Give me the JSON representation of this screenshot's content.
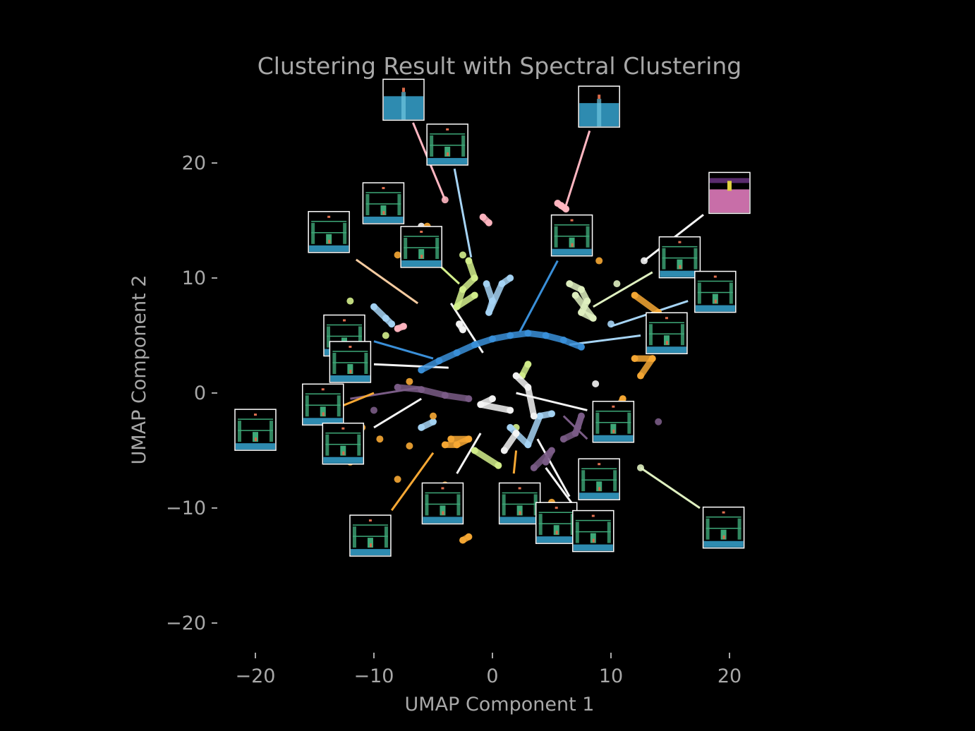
{
  "chart_data": {
    "type": "scatter",
    "title": "Clustering Result with Spectral Clustering",
    "xlabel": "UMAP Component 1",
    "ylabel": "UMAP Component 2",
    "xlim": [
      -21,
      21
    ],
    "ylim": [
      -22,
      25
    ],
    "xticks": [
      -20,
      -10,
      0,
      10,
      20
    ],
    "yticks": [
      -20,
      -10,
      0,
      10,
      20
    ],
    "xtick_labels": [
      "−20",
      "−10",
      "0",
      "10",
      "20"
    ],
    "ytick_labels": [
      "−20",
      "−10",
      "0",
      "10",
      "20"
    ],
    "grid": false,
    "background": "#000000",
    "series": [
      {
        "color": "#3a8fd8",
        "points": [
          [
            -6,
            2
          ],
          [
            -4.5,
            2.8
          ],
          [
            -3,
            3.5
          ],
          [
            -1.5,
            4.2
          ],
          [
            0,
            4.7
          ],
          [
            1.5,
            5
          ],
          [
            3,
            5.2
          ],
          [
            4.5,
            5
          ],
          [
            6,
            4.6
          ],
          [
            7.5,
            4
          ]
        ]
      },
      {
        "color": "#ffb6c1",
        "points": [
          [
            5.8,
            16.3
          ],
          [
            6.2,
            16
          ],
          [
            5.5,
            16.5
          ],
          [
            -4,
            16.8
          ],
          [
            -0.8,
            15.3
          ],
          [
            -0.3,
            14.8
          ],
          [
            -8,
            5.6
          ],
          [
            -7.5,
            5.8
          ]
        ]
      },
      {
        "color": "#d4f08c",
        "points": [
          [
            -2,
            11.5
          ],
          [
            -1.5,
            10
          ],
          [
            -2.5,
            9
          ],
          [
            -3,
            7.5
          ],
          [
            -1.5,
            8.5
          ],
          [
            -2.5,
            12
          ],
          [
            2,
            -3
          ],
          [
            -1.5,
            -5
          ],
          [
            0.5,
            -6.3
          ],
          [
            2.5,
            1.5
          ],
          [
            3,
            2.5
          ],
          [
            -9,
            5
          ],
          [
            -12,
            8
          ]
        ]
      },
      {
        "color": "#dff0c0",
        "points": [
          [
            6.5,
            9.5
          ],
          [
            7.5,
            9
          ],
          [
            8,
            8
          ],
          [
            7.5,
            7
          ],
          [
            8.5,
            6.5
          ],
          [
            7,
            8.5
          ],
          [
            12.5,
            -6.5
          ],
          [
            10.5,
            9.5
          ]
        ]
      },
      {
        "color": "#a6d4f5",
        "points": [
          [
            -0.5,
            9.5
          ],
          [
            0,
            8
          ],
          [
            -0.3,
            7
          ],
          [
            0.8,
            9.5
          ],
          [
            1.5,
            10
          ],
          [
            -10,
            7.5
          ],
          [
            -9,
            6.5
          ],
          [
            -8.5,
            6
          ],
          [
            1.5,
            -3
          ],
          [
            3,
            -4.5
          ],
          [
            4,
            -2
          ],
          [
            5,
            -1.8
          ],
          [
            -6,
            -3
          ],
          [
            -5,
            -2.5
          ],
          [
            10,
            6
          ]
        ]
      },
      {
        "color": "#f5f5f5",
        "points": [
          [
            0,
            -0.5
          ],
          [
            -1,
            -1
          ],
          [
            1.5,
            -1.5
          ],
          [
            2,
            1.5
          ],
          [
            3,
            0.5
          ],
          [
            3.5,
            -2
          ],
          [
            1,
            -5
          ],
          [
            2,
            -3.5
          ],
          [
            -2.5,
            5.5
          ],
          [
            -2.8,
            6
          ],
          [
            12.8,
            11.5
          ],
          [
            8.7,
            0.8
          ],
          [
            -6,
            14.5
          ]
        ]
      },
      {
        "color": "#7a5c86",
        "points": [
          [
            -8,
            0.5
          ],
          [
            -6,
            0.3
          ],
          [
            -4,
            -0.2
          ],
          [
            -2,
            -0.5
          ],
          [
            6,
            -4
          ],
          [
            7,
            -3.5
          ],
          [
            7.5,
            -2
          ],
          [
            7.2,
            -3
          ],
          [
            4.5,
            -6
          ],
          [
            5,
            -5
          ],
          [
            3.5,
            -6.5
          ],
          [
            -10,
            -1.5
          ],
          [
            14,
            -2.5
          ]
        ]
      },
      {
        "color": "#f7a834",
        "points": [
          [
            -4,
            -4.5
          ],
          [
            -3,
            -4.5
          ],
          [
            -2,
            -4
          ],
          [
            -3.5,
            -4
          ],
          [
            -7,
            -4.6
          ],
          [
            -8,
            -7.5
          ],
          [
            -9.5,
            -4
          ],
          [
            -12,
            -6
          ],
          [
            -11,
            -3
          ],
          [
            -7,
            1
          ],
          [
            -5,
            -2
          ],
          [
            -2,
            -12.5
          ],
          [
            -2.5,
            -12.8
          ],
          [
            -4,
            -8
          ],
          [
            9,
            -1.5
          ],
          [
            10,
            -2.5
          ],
          [
            11,
            -0.5
          ],
          [
            12,
            3
          ],
          [
            13.5,
            3
          ],
          [
            12.5,
            1.5
          ],
          [
            9,
            11.5
          ],
          [
            12,
            8.5
          ],
          [
            14,
            7
          ],
          [
            5,
            -9.5
          ],
          [
            8,
            -9
          ],
          [
            -5.5,
            14.5
          ],
          [
            -8,
            12
          ],
          [
            -11,
            -11
          ]
        ]
      }
    ],
    "connectors": [
      {
        "color": "#ffb6c1",
        "from": [
          -4,
          16.8
        ],
        "to": [
          -6.7,
          23.5
        ]
      },
      {
        "color": "#a6d4f5",
        "from": [
          -1.8,
          11.8
        ],
        "to": [
          -3.2,
          19.5
        ]
      },
      {
        "color": "#ffb6c1",
        "from": [
          6.2,
          16.3
        ],
        "to": [
          8.2,
          22.8
        ]
      },
      {
        "color": "#f5f5f5",
        "from": [
          12.8,
          11.5
        ],
        "to": [
          17.8,
          15.5
        ]
      },
      {
        "color": "#d4f08c",
        "from": [
          -2.8,
          9.5
        ],
        "to": [
          -7,
          13.5
        ]
      },
      {
        "color": "#f5cba0",
        "from": [
          -6.3,
          7.8
        ],
        "to": [
          -11.5,
          11.6
        ]
      },
      {
        "color": "#3a8fd8",
        "from": [
          2.3,
          5.3
        ],
        "to": [
          5.5,
          11.5
        ]
      },
      {
        "color": "#dff0c0",
        "from": [
          8.5,
          7.5
        ],
        "to": [
          13.5,
          10.5
        ]
      },
      {
        "color": "#a6d4f5",
        "from": [
          10,
          5.8
        ],
        "to": [
          16.5,
          8
        ]
      },
      {
        "color": "#f5f5f5",
        "from": [
          -3.5,
          7.8
        ],
        "to": [
          -0.8,
          3.5
        ]
      },
      {
        "color": "#a6d4f5",
        "from": [
          6.5,
          4.2
        ],
        "to": [
          12.5,
          5
        ]
      },
      {
        "color": "#3a8fd8",
        "from": [
          -10,
          4.5
        ],
        "to": [
          -5,
          3
        ]
      },
      {
        "color": "#f5f5f5",
        "from": [
          -10,
          2.5
        ],
        "to": [
          -3.7,
          2.2
        ]
      },
      {
        "color": "#7a5c86",
        "from": [
          -12,
          -0.5
        ],
        "to": [
          -6,
          0.5
        ]
      },
      {
        "color": "#f7a834",
        "from": [
          -16,
          -2.5
        ],
        "to": [
          -10,
          0
        ]
      },
      {
        "color": "#f5f5f5",
        "from": [
          -10,
          -3
        ],
        "to": [
          -6,
          -0.5
        ]
      },
      {
        "color": "#f5f5f5",
        "from": [
          2,
          0
        ],
        "to": [
          8,
          -1.5
        ]
      },
      {
        "color": "#7a5c86",
        "from": [
          6,
          -2
        ],
        "to": [
          8,
          -4
        ]
      },
      {
        "color": "#f5f5f5",
        "from": [
          -3,
          -7
        ],
        "to": [
          -1,
          -3.5
        ]
      },
      {
        "color": "#f7a834",
        "from": [
          -8.5,
          -10.2
        ],
        "to": [
          -5,
          -5.2
        ]
      },
      {
        "color": "#f7a834",
        "from": [
          1.8,
          -7
        ],
        "to": [
          2,
          -5
        ]
      },
      {
        "color": "#f5f5f5",
        "from": [
          4.5,
          -6.5
        ],
        "to": [
          7,
          -10
        ]
      },
      {
        "color": "#f5f5f5",
        "from": [
          3.8,
          -4
        ],
        "to": [
          6.5,
          -9
        ]
      },
      {
        "color": "#dff0c0",
        "from": [
          12.5,
          -6.5
        ],
        "to": [
          17.5,
          -10
        ]
      }
    ],
    "thumbnails": [
      {
        "x": -7.5,
        "y": 25.5,
        "scene": "water"
      },
      {
        "x": -3.8,
        "y": 21.6,
        "scene": "level"
      },
      {
        "x": 9,
        "y": 24.9,
        "scene": "water"
      },
      {
        "x": 20,
        "y": 17.4,
        "scene": "pink"
      },
      {
        "x": -9.2,
        "y": 16.5,
        "scene": "level"
      },
      {
        "x": -13.8,
        "y": 14,
        "scene": "level"
      },
      {
        "x": -6,
        "y": 12.7,
        "scene": "level"
      },
      {
        "x": 6.7,
        "y": 13.7,
        "scene": "level"
      },
      {
        "x": 15.8,
        "y": 11.8,
        "scene": "level"
      },
      {
        "x": 18.8,
        "y": 8.8,
        "scene": "level"
      },
      {
        "x": 14.7,
        "y": 5.2,
        "scene": "level"
      },
      {
        "x": -12.5,
        "y": 5,
        "scene": "level"
      },
      {
        "x": -12,
        "y": 2.7,
        "scene": "level"
      },
      {
        "x": -14.3,
        "y": -1,
        "scene": "level"
      },
      {
        "x": -20,
        "y": -3.2,
        "scene": "level"
      },
      {
        "x": -12.6,
        "y": -4.4,
        "scene": "level"
      },
      {
        "x": 10.2,
        "y": -2.5,
        "scene": "level"
      },
      {
        "x": 9,
        "y": -7.5,
        "scene": "level"
      },
      {
        "x": -4.2,
        "y": -9.6,
        "scene": "level"
      },
      {
        "x": 2.3,
        "y": -9.6,
        "scene": "level"
      },
      {
        "x": 5.4,
        "y": -11.3,
        "scene": "level"
      },
      {
        "x": 8.5,
        "y": -12,
        "scene": "level"
      },
      {
        "x": -10.3,
        "y": -12.4,
        "scene": "level"
      },
      {
        "x": 19.5,
        "y": -11.7,
        "scene": "level"
      }
    ]
  }
}
